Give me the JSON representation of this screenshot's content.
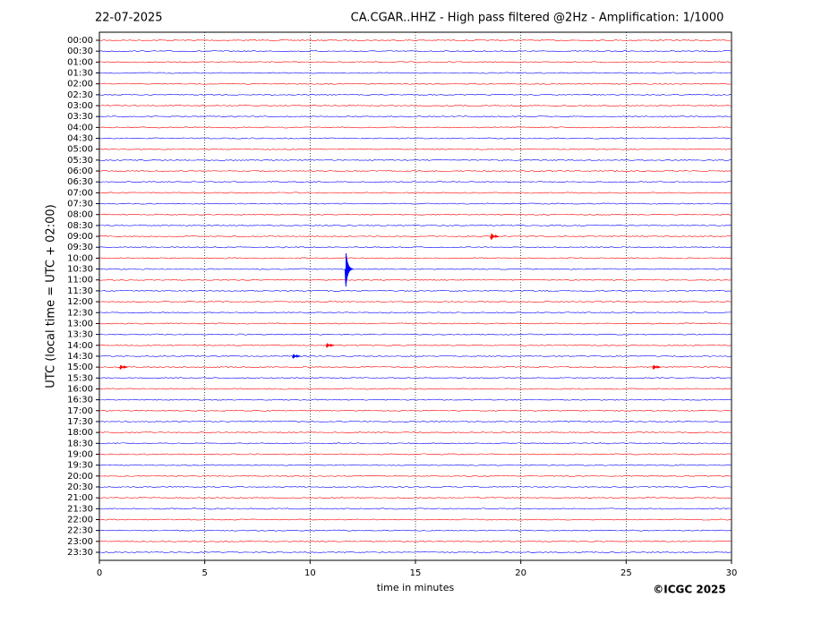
{
  "chart_data": {
    "type": "helicorder",
    "title_left": "22-07-2025",
    "title": "CA.CGAR..HHZ - High pass filtered @2Hz - Amplification: 1/1000",
    "ylabel": "UTC (local time = UTC + 02:00)",
    "xlabel": "time in minutes",
    "credit": "©ICGC 2025",
    "categories": [
      "00:00",
      "00:30",
      "01:00",
      "01:30",
      "02:00",
      "02:30",
      "03:00",
      "03:30",
      "04:00",
      "04:30",
      "05:00",
      "05:30",
      "06:00",
      "06:30",
      "07:00",
      "07:30",
      "08:00",
      "08:30",
      "09:00",
      "09:30",
      "10:00",
      "10:30",
      "11:00",
      "11:30",
      "12:00",
      "12:30",
      "13:00",
      "13:30",
      "14:00",
      "14:30",
      "15:00",
      "15:30",
      "16:00",
      "16:30",
      "17:00",
      "17:30",
      "18:00",
      "18:30",
      "19:00",
      "19:30",
      "20:00",
      "20:30",
      "21:00",
      "21:30",
      "22:00",
      "22:30",
      "23:00",
      "23:30"
    ],
    "colors": [
      "#ff0000",
      "#0000ff"
    ],
    "xlim": [
      0,
      30
    ],
    "xticks": [
      0,
      5,
      10,
      15,
      20,
      25,
      30
    ],
    "grid": true,
    "events": [
      {
        "category": "10:30",
        "x": 11.7,
        "amplitude": 1.6
      },
      {
        "category": "09:00",
        "x": 18.6,
        "amplitude": 0.3
      },
      {
        "category": "14:00",
        "x": 10.8,
        "amplitude": 0.2
      },
      {
        "category": "14:30",
        "x": 9.2,
        "amplitude": 0.2
      },
      {
        "category": "15:00",
        "x": 1.0,
        "amplitude": 0.2
      },
      {
        "category": "15:00",
        "x": 26.3,
        "amplitude": 0.2
      }
    ]
  }
}
